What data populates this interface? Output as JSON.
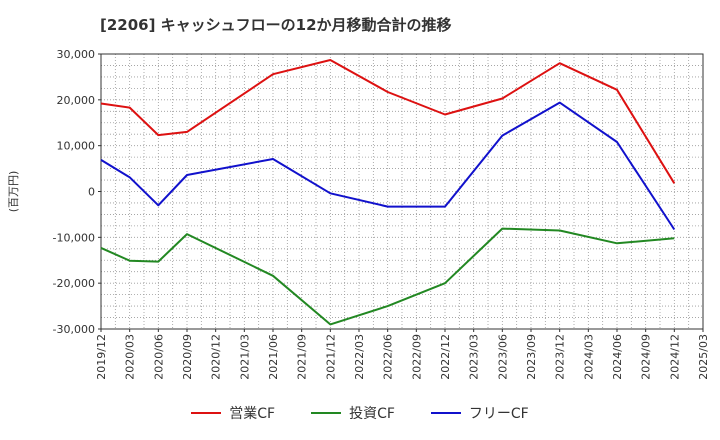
{
  "chart_data": {
    "type": "line",
    "title": "[2206]  キャッシュフローの12か月移動合計の推移",
    "ylabel": "(百万円)",
    "xlabel": "",
    "ylim": [
      -30000,
      30000
    ],
    "yticks": [
      30000,
      20000,
      10000,
      0,
      -10000,
      -20000,
      -30000
    ],
    "ytick_labels": [
      "30,000",
      "20,000",
      "10,000",
      "0",
      "-10,000",
      "-20,000",
      "-30,000"
    ],
    "categories": [
      "2019/12",
      "2020/03",
      "2020/06",
      "2020/09",
      "2020/12",
      "2021/03",
      "2021/06",
      "2021/09",
      "2021/12",
      "2022/03",
      "2022/06",
      "2022/09",
      "2022/12",
      "2023/03",
      "2023/06",
      "2023/09",
      "2023/12",
      "2024/03",
      "2024/06",
      "2024/09",
      "2024/12",
      "2025/03"
    ],
    "grid": true,
    "legend_position": "bottom",
    "series": [
      {
        "name": "営業CF",
        "color": "#dd1111",
        "values": [
          19200,
          18300,
          12300,
          13000,
          null,
          null,
          25600,
          null,
          28700,
          null,
          21700,
          null,
          16800,
          null,
          20300,
          null,
          28000,
          null,
          22200,
          null,
          1800,
          null
        ]
      },
      {
        "name": "投資CF",
        "color": "#228822",
        "values": [
          -12300,
          -15100,
          -15300,
          -9300,
          null,
          null,
          -18400,
          null,
          -29000,
          null,
          -25000,
          null,
          -20000,
          null,
          -8100,
          null,
          -8500,
          null,
          -11300,
          null,
          -10200,
          null
        ]
      },
      {
        "name": "フリーCF",
        "color": "#1111cc",
        "values": [
          6900,
          3100,
          -3000,
          3600,
          null,
          null,
          7100,
          null,
          -400,
          null,
          -3300,
          null,
          -3300,
          null,
          12200,
          null,
          19400,
          null,
          10800,
          null,
          -8300,
          null
        ]
      }
    ]
  }
}
